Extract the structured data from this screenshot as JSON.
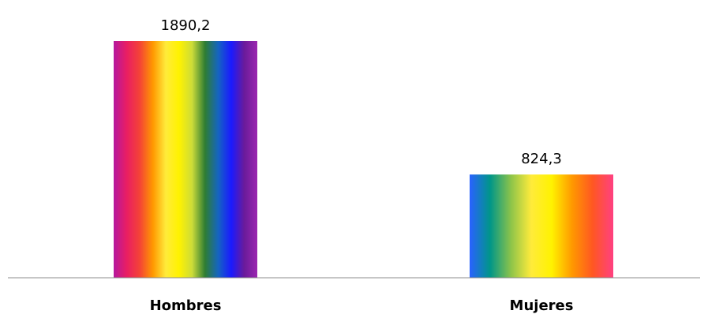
{
  "chart_data": {
    "type": "bar",
    "categories": [
      "Hombres",
      "Mujeres"
    ],
    "values": [
      1890.2,
      824.3
    ],
    "data_labels": [
      "1890,2",
      "824,3"
    ],
    "title": "",
    "xlabel": "",
    "ylabel": "",
    "ylim": [
      0,
      1890.2
    ],
    "grid": false,
    "legend": "none",
    "bar_gradients": [
      [
        "#b5179e",
        "#e91e63",
        "#f44336",
        "#ff9800",
        "#ffeb3b",
        "#fff200",
        "#cddc39",
        "#2e7d32",
        "#1565c0",
        "#1a1aff",
        "#6a1b9a",
        "#9c27b0"
      ],
      [
        "#2962ff",
        "#009688",
        "#8bc34a",
        "#ffeb3b",
        "#fff200",
        "#ff9800",
        "#ff5722",
        "#ff4081"
      ]
    ],
    "axis_color": "#8c8c8c"
  }
}
